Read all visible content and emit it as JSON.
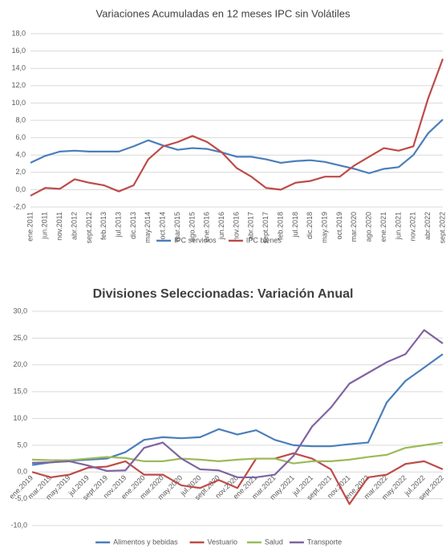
{
  "chart_data": [
    {
      "type": "line",
      "title": "Variaciones Acumuladas en 12 meses IPC sin Volátiles",
      "categories": [
        "ene.2011",
        "jun.2011",
        "nov.2011",
        "abr.2012",
        "sept.2012",
        "feb.2013",
        "jul.2013",
        "dic.2013",
        "may.2014",
        "oct.2014",
        "mar.2015",
        "ago.2015",
        "ene.2016",
        "jun.2016",
        "nov.2016",
        "abr.2017",
        "sept.2017",
        "feb.2018",
        "jul.2018",
        "dic.2018",
        "may.2019",
        "oct.2019",
        "mar.2020",
        "ago.2020",
        "ene.2021",
        "jun.2021",
        "nov.2021",
        "abr.2022",
        "sept.2022"
      ],
      "series": [
        {
          "name": "IPC servicios",
          "color": "#4a7ebb",
          "values": [
            3.1,
            3.9,
            4.4,
            4.5,
            4.4,
            4.4,
            4.4,
            5.0,
            5.7,
            5.1,
            4.6,
            4.8,
            4.7,
            4.3,
            3.8,
            3.8,
            3.5,
            3.1,
            3.3,
            3.4,
            3.2,
            2.8,
            2.4,
            1.9,
            2.4,
            2.6,
            4.0,
            6.5,
            8.1
          ]
        },
        {
          "name": "IPC bienes",
          "color": "#be4b48",
          "values": [
            -0.7,
            0.2,
            0.1,
            1.2,
            0.8,
            0.5,
            -0.2,
            0.5,
            3.5,
            5.0,
            5.5,
            6.2,
            5.5,
            4.3,
            2.5,
            1.5,
            0.2,
            0.0,
            0.8,
            1.0,
            1.5,
            1.5,
            2.8,
            3.8,
            4.8,
            4.5,
            5.0,
            10.5,
            15.1
          ]
        }
      ],
      "ylim": [
        -2,
        18
      ],
      "yticks": [
        {
          "value": -2,
          "label": "-2,0"
        },
        {
          "value": 0,
          "label": "0,0"
        },
        {
          "value": 2,
          "label": "2,0"
        },
        {
          "value": 4,
          "label": "4,0"
        },
        {
          "value": 6,
          "label": "6,0"
        },
        {
          "value": 8,
          "label": "8,0"
        },
        {
          "value": 10,
          "label": "10,0"
        },
        {
          "value": 12,
          "label": "12,0"
        },
        {
          "value": 14,
          "label": "14,0"
        },
        {
          "value": 16,
          "label": "16,0"
        },
        {
          "value": 18,
          "label": "18,0"
        }
      ],
      "grid": true,
      "legend": "bottom"
    },
    {
      "type": "line",
      "title": "Divisiones Seleccionadas: Variación Anual",
      "categories": [
        "ene.2019",
        "mar.2019",
        "may.2019",
        "jul.2019",
        "sept.2019",
        "nov.2019",
        "ene.2020",
        "mar.2020",
        "may.2020",
        "jul.2020",
        "sept.2020",
        "nov.2020",
        "ene.2021",
        "mar.2021",
        "may.2021",
        "jul.2021",
        "sept.2021",
        "nov.2021",
        "ene.2022",
        "mar.2022",
        "may.2022",
        "jul.2022",
        "sept.2022"
      ],
      "series": [
        {
          "name": "Alimentos y bebidas",
          "color": "#4a7ebb",
          "values": [
            1.3,
            1.8,
            2.1,
            2.3,
            2.5,
            3.7,
            6.0,
            6.5,
            6.3,
            6.5,
            8.0,
            7.0,
            7.8,
            6.0,
            5.0,
            4.8,
            4.8,
            5.2,
            5.5,
            13.0,
            17.0,
            19.5,
            22.0
          ]
        },
        {
          "name": "Vestuario",
          "color": "#be4b48",
          "values": [
            0.0,
            -1.0,
            -0.5,
            0.8,
            1.0,
            2.0,
            -0.5,
            -0.5,
            -2.5,
            -3.0,
            -1.5,
            -3.0,
            2.5,
            2.5,
            3.5,
            2.5,
            0.5,
            -6.0,
            -1.0,
            -0.5,
            1.5,
            2.0,
            0.5
          ]
        },
        {
          "name": "Salud",
          "color": "#9bbb59",
          "values": [
            2.3,
            2.2,
            2.2,
            2.5,
            2.8,
            2.6,
            2.0,
            2.0,
            2.5,
            2.3,
            2.0,
            2.3,
            2.5,
            2.5,
            1.6,
            2.0,
            2.0,
            2.3,
            2.8,
            3.2,
            4.5,
            5.0,
            5.5
          ]
        },
        {
          "name": "Transporte",
          "color": "#7f63a1",
          "values": [
            1.7,
            1.8,
            2.0,
            1.2,
            0.2,
            0.3,
            4.5,
            5.5,
            2.5,
            0.5,
            0.3,
            -1.0,
            -1.0,
            -0.5,
            3.0,
            8.5,
            12.0,
            16.5,
            18.5,
            20.5,
            22.0,
            26.5,
            24.0
          ]
        }
      ],
      "ylim": [
        -10,
        30
      ],
      "yticks": [
        {
          "value": -10,
          "label": "-10,0"
        },
        {
          "value": -5,
          "label": "-5,0"
        },
        {
          "value": 0,
          "label": "0,0"
        },
        {
          "value": 5,
          "label": "5,0"
        },
        {
          "value": 10,
          "label": "10,0"
        },
        {
          "value": 15,
          "label": "15,0"
        },
        {
          "value": 20,
          "label": "20,0"
        },
        {
          "value": 25,
          "label": "25,0"
        },
        {
          "value": 30,
          "label": "30,0"
        }
      ],
      "grid": true,
      "legend": "bottom"
    }
  ]
}
